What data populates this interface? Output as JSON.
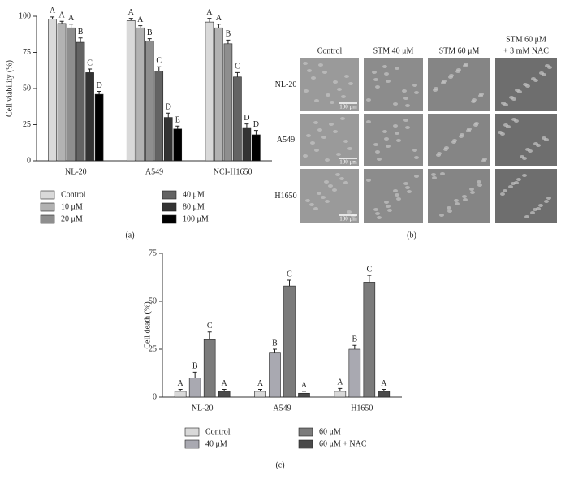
{
  "chart_data": [
    {
      "type": "bar",
      "panel_label": "(a)",
      "y_label": "Cell viability (%)",
      "categories": [
        "NL-20",
        "A549",
        "NCI-H1650"
      ],
      "ylim": [
        0,
        100
      ],
      "yticks": [
        0,
        25,
        50,
        75,
        100
      ],
      "legend_position": "below",
      "series": [
        {
          "name": "Control",
          "color": "#d9d9d9",
          "values": [
            98,
            97,
            96
          ],
          "errors": [
            1.5,
            1.5,
            2.5
          ],
          "significance": [
            "A",
            "A",
            "A"
          ]
        },
        {
          "name": "10 μM",
          "color": "#b2b2b2",
          "values": [
            95,
            92,
            92
          ],
          "errors": [
            1.5,
            1.5,
            2.5
          ],
          "significance": [
            "A",
            "A",
            "A"
          ]
        },
        {
          "name": "20 μM",
          "color": "#8e8e8e",
          "values": [
            92,
            83,
            81
          ],
          "errors": [
            2.5,
            1.5,
            2.5
          ],
          "significance": [
            "A",
            "B",
            "B"
          ]
        },
        {
          "name": "40 μM",
          "color": "#636363",
          "values": [
            82,
            62,
            58
          ],
          "errors": [
            3,
            3,
            3
          ],
          "significance": [
            "B",
            "C",
            "C"
          ]
        },
        {
          "name": "80 μM",
          "color": "#333333",
          "values": [
            61,
            30,
            23
          ],
          "errors": [
            2.5,
            3,
            2.5
          ],
          "significance": [
            "C",
            "D",
            "D"
          ]
        },
        {
          "name": "100 μM",
          "color": "#000000",
          "values": [
            46,
            22,
            18
          ],
          "errors": [
            2,
            2,
            3
          ],
          "significance": [
            "D",
            "E",
            "D"
          ]
        }
      ]
    },
    {
      "type": "bar",
      "panel_label": "(c)",
      "y_label": "Cell death (%)",
      "categories": [
        "NL-20",
        "A549",
        "H1650"
      ],
      "ylim": [
        0,
        75
      ],
      "yticks": [
        0,
        25,
        50,
        75
      ],
      "legend_position": "below",
      "series": [
        {
          "name": "Control",
          "color": "#d9d9d9",
          "values": [
            3,
            3,
            3
          ],
          "errors": [
            1,
            1,
            1.5
          ],
          "significance": [
            "A",
            "A",
            "A"
          ]
        },
        {
          "name": "40 μM",
          "color": "#a9a9b1",
          "values": [
            10,
            23,
            25
          ],
          "errors": [
            3,
            2,
            2
          ],
          "significance": [
            "B",
            "B",
            "B"
          ]
        },
        {
          "name": "60 μM",
          "color": "#7b7b7b",
          "values": [
            30,
            58,
            60
          ],
          "errors": [
            4,
            3,
            3.5
          ],
          "significance": [
            "C",
            "C",
            "C"
          ]
        },
        {
          "name": "60 μM + NAC",
          "color": "#4a4a4a",
          "values": [
            3,
            2,
            3
          ],
          "errors": [
            1,
            1,
            1
          ],
          "significance": [
            "A",
            "A",
            "A"
          ]
        }
      ]
    }
  ],
  "image_panel": {
    "panel_label": "(b)",
    "columns": [
      [
        "Control"
      ],
      [
        "STM 40 μM"
      ],
      [
        "STM 60 μM"
      ],
      [
        "STM 60 μM",
        "+ 3 mM NAC"
      ]
    ],
    "rows": [
      "NL-20",
      "A549",
      "H1650"
    ],
    "scale_bar": "100 μm"
  }
}
